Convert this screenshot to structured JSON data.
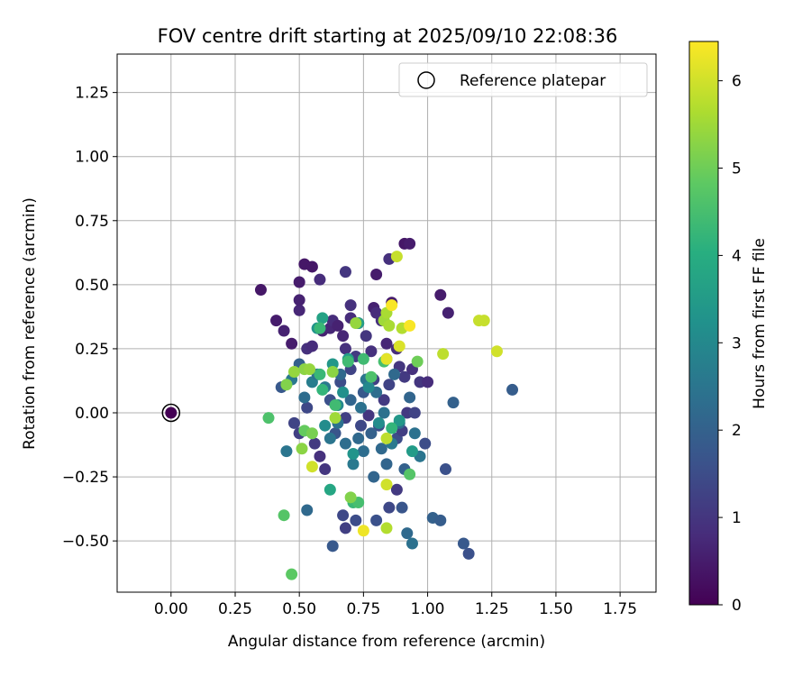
{
  "chart_data": {
    "type": "scatter",
    "title": "FOV centre drift starting at 2025/09/10 22:08:36",
    "xlabel": "Angular distance from reference (arcmin)",
    "ylabel": "Rotation from reference (arcmin)",
    "xlim": [
      -0.21,
      1.89
    ],
    "ylim": [
      -0.7,
      1.4
    ],
    "xticks": [
      0.0,
      0.25,
      0.5,
      0.75,
      1.0,
      1.25,
      1.5,
      1.75
    ],
    "xtick_labels": [
      "0.00",
      "0.25",
      "0.50",
      "0.75",
      "1.00",
      "1.25",
      "1.50",
      "1.75"
    ],
    "yticks": [
      -0.5,
      -0.25,
      0.0,
      0.25,
      0.5,
      0.75,
      1.0,
      1.25
    ],
    "ytick_labels": [
      "−0.50",
      "−0.25",
      "0.00",
      "0.25",
      "0.50",
      "0.75",
      "1.00",
      "1.25"
    ],
    "grid": true,
    "legend": {
      "placement": "top-right",
      "entries": [
        "Reference platepar"
      ]
    },
    "reference_point": {
      "x": 0.0,
      "y": 0.0,
      "c": 0.0
    },
    "colorbar": {
      "label": "Hours from first FF file",
      "min": 0,
      "max": 6.45,
      "ticks": [
        0,
        1,
        2,
        3,
        4,
        5,
        6
      ],
      "tick_labels": [
        "0",
        "1",
        "2",
        "3",
        "4",
        "5",
        "6"
      ],
      "colormap": "viridis",
      "stops": [
        "#440154",
        "#472d7b",
        "#3b528b",
        "#2c728e",
        "#21918c",
        "#28ae80",
        "#5ec962",
        "#addc30",
        "#fde725"
      ]
    },
    "series": [
      {
        "points": [
          [
            0.35,
            0.48,
            0.4
          ],
          [
            0.41,
            0.36,
            0.5
          ],
          [
            0.44,
            0.32,
            0.6
          ],
          [
            0.47,
            0.27,
            0.5
          ],
          [
            0.5,
            0.4,
            0.7
          ],
          [
            0.5,
            0.44,
            0.6
          ],
          [
            0.5,
            0.51,
            0.5
          ],
          [
            0.52,
            0.58,
            0.4
          ],
          [
            0.55,
            0.57,
            0.4
          ],
          [
            0.58,
            0.52,
            0.8
          ],
          [
            0.68,
            0.55,
            1.0
          ],
          [
            0.8,
            0.54,
            0.5
          ],
          [
            0.85,
            0.6,
            0.9
          ],
          [
            0.91,
            0.66,
            0.4
          ],
          [
            0.93,
            0.66,
            0.5
          ],
          [
            1.05,
            0.46,
            0.5
          ],
          [
            1.08,
            0.39,
            0.6
          ],
          [
            0.53,
            0.25,
            0.9
          ],
          [
            0.55,
            0.26,
            0.8
          ],
          [
            0.59,
            0.32,
            0.6
          ],
          [
            0.62,
            0.33,
            0.7
          ],
          [
            0.63,
            0.36,
            0.8
          ],
          [
            0.65,
            0.34,
            0.6
          ],
          [
            0.67,
            0.3,
            0.7
          ],
          [
            0.68,
            0.25,
            0.9
          ],
          [
            0.7,
            0.42,
            0.9
          ],
          [
            0.7,
            0.37,
            0.8
          ],
          [
            0.73,
            0.35,
            0.9
          ],
          [
            0.76,
            0.3,
            1.0
          ],
          [
            0.78,
            0.24,
            0.9
          ],
          [
            0.79,
            0.41,
            0.6
          ],
          [
            0.8,
            0.39,
            0.8
          ],
          [
            0.82,
            0.36,
            0.9
          ],
          [
            0.84,
            0.27,
            0.7
          ],
          [
            0.86,
            0.43,
            0.5
          ],
          [
            0.88,
            0.25,
            0.8
          ],
          [
            0.89,
            0.18,
            1.0
          ],
          [
            0.91,
            0.14,
            1.1
          ],
          [
            0.94,
            0.17,
            0.9
          ],
          [
            0.97,
            0.12,
            1.0
          ],
          [
            1.0,
            0.12,
            0.8
          ],
          [
            0.48,
            -0.04,
            1.3
          ],
          [
            0.5,
            -0.08,
            1.2
          ],
          [
            0.53,
            0.02,
            1.4
          ],
          [
            0.56,
            -0.12,
            1.1
          ],
          [
            0.58,
            -0.17,
            0.9
          ],
          [
            0.6,
            -0.22,
            1.0
          ],
          [
            0.62,
            0.05,
            1.6
          ],
          [
            0.64,
            -0.08,
            1.7
          ],
          [
            0.66,
            0.12,
            1.5
          ],
          [
            0.68,
            -0.02,
            1.2
          ],
          [
            0.7,
            0.17,
            1.3
          ],
          [
            0.72,
            0.22,
            1.1
          ],
          [
            0.74,
            -0.05,
            1.4
          ],
          [
            0.75,
            0.08,
            1.8
          ],
          [
            0.77,
            -0.01,
            1.0
          ],
          [
            0.79,
            0.13,
            1.2
          ],
          [
            0.81,
            -0.05,
            1.5
          ],
          [
            0.83,
            0.05,
            1.1
          ],
          [
            0.85,
            0.11,
            1.3
          ],
          [
            0.88,
            -0.1,
            1.5
          ],
          [
            0.9,
            -0.07,
            1.2
          ],
          [
            0.92,
            0.0,
            1.1
          ],
          [
            0.95,
            0.0,
            1.3
          ],
          [
            0.99,
            -0.12,
            1.5
          ],
          [
            0.67,
            -0.4,
            1.4
          ],
          [
            0.68,
            -0.45,
            1.2
          ],
          [
            0.72,
            -0.42,
            1.5
          ],
          [
            0.63,
            -0.52,
            1.8
          ],
          [
            0.8,
            -0.42,
            1.6
          ],
          [
            0.85,
            -0.37,
            1.4
          ],
          [
            0.88,
            -0.3,
            1.1
          ],
          [
            0.9,
            -0.37,
            1.7
          ],
          [
            0.92,
            -0.47,
            2.2
          ],
          [
            0.94,
            -0.51,
            2.4
          ],
          [
            1.02,
            -0.41,
            2.0
          ],
          [
            1.05,
            -0.42,
            1.9
          ],
          [
            1.14,
            -0.51,
            1.8
          ],
          [
            1.16,
            -0.55,
            1.6
          ],
          [
            1.07,
            -0.22,
            1.6
          ],
          [
            1.1,
            0.04,
            2.0
          ],
          [
            1.33,
            0.09,
            1.9
          ],
          [
            0.43,
            0.1,
            1.8
          ],
          [
            0.5,
            0.19,
            2.0
          ],
          [
            0.53,
            -0.38,
            2.2
          ],
          [
            0.45,
            -0.15,
            2.5
          ],
          [
            0.47,
            0.13,
            2.6
          ],
          [
            0.52,
            0.06,
            2.3
          ],
          [
            0.55,
            0.12,
            2.7
          ],
          [
            0.57,
            0.15,
            2.4
          ],
          [
            0.6,
            0.1,
            2.6
          ],
          [
            0.62,
            -0.1,
            2.5
          ],
          [
            0.65,
            -0.04,
            2.4
          ],
          [
            0.66,
            0.15,
            2.2
          ],
          [
            0.68,
            -0.12,
            2.3
          ],
          [
            0.7,
            0.05,
            2.1
          ],
          [
            0.71,
            -0.2,
            2.6
          ],
          [
            0.73,
            -0.1,
            2.2
          ],
          [
            0.74,
            0.02,
            2.4
          ],
          [
            0.75,
            -0.15,
            2.3
          ],
          [
            0.76,
            0.13,
            2.5
          ],
          [
            0.78,
            -0.08,
            2.0
          ],
          [
            0.79,
            -0.25,
            2.1
          ],
          [
            0.8,
            0.08,
            2.3
          ],
          [
            0.82,
            -0.14,
            2.2
          ],
          [
            0.83,
            0.0,
            2.4
          ],
          [
            0.84,
            -0.2,
            2.1
          ],
          [
            0.86,
            -0.12,
            2.6
          ],
          [
            0.87,
            0.15,
            2.2
          ],
          [
            0.89,
            -0.04,
            2.3
          ],
          [
            0.91,
            -0.22,
            2.0
          ],
          [
            0.93,
            0.06,
            2.1
          ],
          [
            0.95,
            -0.08,
            2.4
          ],
          [
            0.97,
            -0.17,
            2.5
          ],
          [
            0.57,
            0.33,
            3.3
          ],
          [
            0.59,
            0.37,
            3.7
          ],
          [
            0.6,
            -0.05,
            3.1
          ],
          [
            0.63,
            0.19,
            3.4
          ],
          [
            0.65,
            0.03,
            3.0
          ],
          [
            0.67,
            0.08,
            3.2
          ],
          [
            0.69,
            0.21,
            3.5
          ],
          [
            0.71,
            -0.16,
            3.3
          ],
          [
            0.73,
            0.35,
            3.6
          ],
          [
            0.77,
            0.1,
            3.0
          ],
          [
            0.81,
            -0.04,
            3.1
          ],
          [
            0.84,
            0.21,
            3.2
          ],
          [
            0.89,
            -0.03,
            3.4
          ],
          [
            0.94,
            -0.15,
            3.5
          ],
          [
            0.62,
            -0.3,
            3.8
          ],
          [
            0.58,
            0.15,
            4.3
          ],
          [
            0.59,
            0.09,
            4.2
          ],
          [
            0.64,
            0.03,
            4.4
          ],
          [
            0.69,
            0.2,
            4.4
          ],
          [
            0.71,
            -0.35,
            4.3
          ],
          [
            0.73,
            -0.35,
            4.5
          ],
          [
            0.75,
            0.21,
            4.4
          ],
          [
            0.78,
            0.14,
            4.6
          ],
          [
            0.83,
            0.2,
            4.5
          ],
          [
            0.86,
            -0.06,
            4.2
          ],
          [
            0.38,
            -0.02,
            4.6
          ],
          [
            0.44,
            -0.4,
            4.7
          ],
          [
            0.47,
            -0.63,
            4.8
          ],
          [
            0.52,
            -0.07,
            4.9
          ],
          [
            0.55,
            -0.08,
            5.1
          ],
          [
            0.58,
            0.33,
            4.3
          ],
          [
            0.93,
            -0.24,
            4.7
          ],
          [
            0.96,
            0.2,
            5.0
          ],
          [
            0.45,
            0.11,
            5.2
          ],
          [
            0.48,
            0.16,
            5.4
          ],
          [
            0.52,
            0.17,
            5.3
          ],
          [
            0.54,
            0.17,
            5.4
          ],
          [
            0.63,
            0.16,
            5.3
          ],
          [
            0.64,
            -0.02,
            5.5
          ],
          [
            0.7,
            -0.33,
            5.2
          ],
          [
            0.72,
            0.35,
            5.4
          ],
          [
            0.83,
            0.36,
            5.5
          ],
          [
            0.84,
            0.39,
            5.6
          ],
          [
            0.85,
            0.34,
            5.6
          ],
          [
            0.9,
            0.33,
            5.7
          ],
          [
            0.51,
            -0.14,
            5.3
          ],
          [
            1.06,
            0.23,
            5.8
          ],
          [
            1.2,
            0.36,
            5.9
          ],
          [
            1.22,
            0.36,
            5.9
          ],
          [
            1.27,
            0.24,
            6.0
          ],
          [
            0.88,
            0.61,
            5.9
          ],
          [
            0.84,
            -0.1,
            5.8
          ],
          [
            0.84,
            -0.28,
            6.0
          ],
          [
            0.84,
            -0.45,
            5.7
          ],
          [
            0.55,
            -0.21,
            6.0
          ],
          [
            0.89,
            0.26,
            6.1
          ],
          [
            0.84,
            0.21,
            6.2
          ],
          [
            0.86,
            0.42,
            6.4
          ],
          [
            0.93,
            0.34,
            6.4
          ],
          [
            0.75,
            -0.46,
            6.3
          ]
        ]
      }
    ]
  }
}
